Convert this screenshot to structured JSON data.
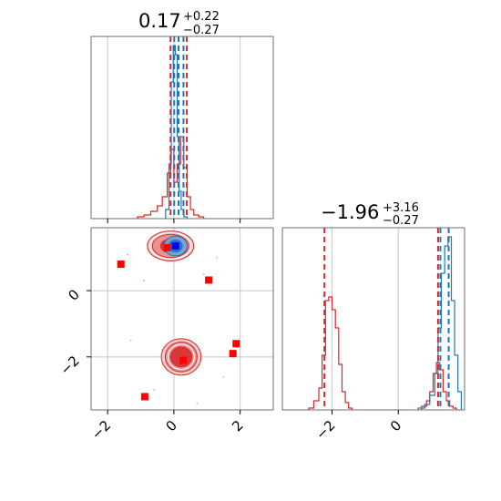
{
  "colors": {
    "red": "#d62728",
    "blue": "#1f77b4",
    "marker_red": "#ff0000",
    "marker_blue": "#0000ff",
    "grid": "#c8c8c8"
  },
  "titles": {
    "param_0": {
      "value": "0.17",
      "plus": "+0.22",
      "minus": "−0.27"
    },
    "param_1": {
      "value": "−1.96",
      "plus": "+3.16",
      "minus": "−0.27"
    }
  },
  "chart_data": {
    "type": "corner",
    "grid": true,
    "param_0": {
      "xlim": [
        -2.5,
        3.0
      ],
      "ticks": [
        -2,
        0,
        2
      ],
      "tick_labels": [
        "−2",
        "0",
        "2"
      ],
      "hist_red": {
        "edges": [
          -1.1,
          -0.9,
          -0.7,
          -0.5,
          -0.35,
          -0.2,
          -0.1,
          0.0,
          0.1,
          0.2,
          0.3,
          0.4,
          0.5,
          0.6,
          0.75,
          0.9
        ],
        "heights": [
          0.01,
          0.02,
          0.04,
          0.07,
          0.12,
          0.25,
          0.38,
          0.2,
          0.3,
          0.45,
          0.28,
          0.12,
          0.05,
          0.02,
          0.01
        ]
      },
      "hist_blue": {
        "edges": [
          -0.25,
          -0.15,
          -0.08,
          -0.02,
          0.04,
          0.1,
          0.16,
          0.22,
          0.3,
          0.4
        ],
        "heights": [
          0.05,
          0.3,
          0.75,
          0.95,
          0.9,
          0.45,
          0.15,
          0.05,
          0.01
        ]
      },
      "quantiles_red": [
        -0.1,
        0.39
      ],
      "quantiles_blue": [
        0.01,
        0.14,
        0.29
      ]
    },
    "param_1": {
      "xlim": [
        -3.5,
        2.0
      ],
      "ticks": [
        -2,
        0
      ],
      "tick_labels": [
        "−2",
        "0"
      ],
      "hist_red": {
        "edges": [
          -2.7,
          -2.55,
          -2.4,
          -2.3,
          -2.2,
          -2.1,
          -2.0,
          -1.9,
          -1.8,
          -1.7,
          -1.6,
          -1.5,
          -1.4
        ],
        "heights": [
          0.01,
          0.05,
          0.12,
          0.3,
          0.6,
          0.62,
          0.55,
          0.45,
          0.25,
          0.1,
          0.04,
          0.01
        ]
      },
      "hist_red_right": {
        "edges": [
          0.7,
          0.85,
          0.95,
          1.05,
          1.15,
          1.25,
          1.35,
          1.45,
          1.55,
          1.65,
          1.75
        ],
        "heights": [
          0.02,
          0.05,
          0.1,
          0.2,
          0.26,
          0.22,
          0.1,
          0.05,
          0.02,
          0.01
        ]
      },
      "hist_blue": {
        "edges": [
          0.6,
          0.8,
          0.95,
          1.1,
          1.2,
          1.3,
          1.4,
          1.5,
          1.6,
          1.7,
          1.8,
          1.9
        ],
        "heights": [
          0.01,
          0.03,
          0.08,
          0.2,
          0.45,
          0.75,
          0.9,
          0.95,
          0.6,
          0.3,
          0.1
        ]
      },
      "quantiles_red": [
        -2.23,
        1.2
      ],
      "quantiles_blue": [
        1.27,
        1.52
      ]
    },
    "scatter_2d": {
      "xlim": [
        -2.5,
        3.0
      ],
      "ylim": [
        -3.6,
        1.9
      ],
      "xticks": [
        -2,
        0,
        2
      ],
      "yticks": [
        0,
        -2
      ],
      "xtick_labels": [
        "−2",
        "0",
        "2"
      ],
      "ytick_labels": [
        "0",
        "−2"
      ],
      "contours_red": [
        {
          "cx": -0.1,
          "cy": 1.35,
          "rx": 0.7,
          "ry": 0.45
        },
        {
          "cx": -0.1,
          "cy": 1.35,
          "rx": 0.55,
          "ry": 0.35
        },
        {
          "cx": -0.05,
          "cy": 1.35,
          "rx": 0.35,
          "ry": 0.22
        },
        {
          "cx": 0.22,
          "cy": -2.0,
          "rx": 0.6,
          "ry": 0.55
        },
        {
          "cx": 0.22,
          "cy": -2.0,
          "rx": 0.48,
          "ry": 0.45
        },
        {
          "cx": 0.22,
          "cy": -2.0,
          "rx": 0.32,
          "ry": 0.3
        }
      ],
      "contours_blue": [
        {
          "cx": 0.05,
          "cy": 1.35,
          "rx": 0.35,
          "ry": 0.3
        },
        {
          "cx": 0.05,
          "cy": 1.35,
          "rx": 0.2,
          "ry": 0.18
        }
      ],
      "markers_red": [
        {
          "x": -1.6,
          "y": 0.8
        },
        {
          "x": -0.2,
          "y": 1.3
        },
        {
          "x": 1.05,
          "y": 0.32
        },
        {
          "x": 1.88,
          "y": -1.6
        },
        {
          "x": 1.78,
          "y": -1.9
        },
        {
          "x": 0.28,
          "y": -2.1
        },
        {
          "x": -0.88,
          "y": -3.2
        }
      ],
      "markers_blue": [
        {
          "x": 0.05,
          "y": 1.35
        }
      ]
    }
  }
}
